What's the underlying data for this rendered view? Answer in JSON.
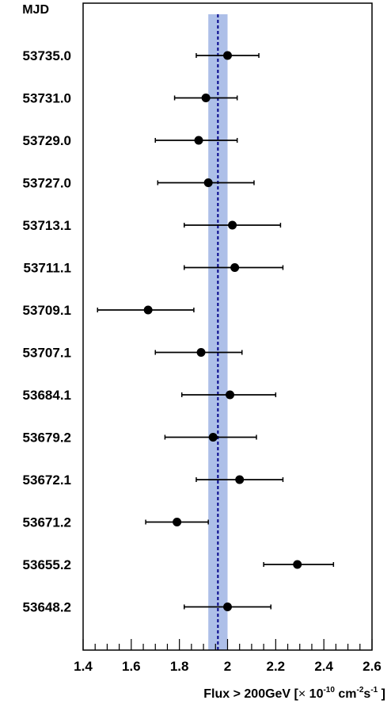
{
  "chart_data": {
    "type": "scatter",
    "orientation": "horizontal",
    "corner_label": "MJD",
    "xlabel_parts": [
      "Flux > 200GeV [",
      "×",
      " 10",
      "-10",
      " cm",
      "-2",
      "s",
      "-1",
      " ]"
    ],
    "x_ticks": [
      "1.4",
      "1.6",
      "1.8",
      "2",
      "2.2",
      "2.4",
      "2.6"
    ],
    "xlim": [
      1.4,
      2.6
    ],
    "categories": [
      "53735.0",
      "53731.0",
      "53729.0",
      "53727.0",
      "53713.1",
      "53711.1",
      "53709.1",
      "53707.1",
      "53684.1",
      "53679.2",
      "53672.1",
      "53671.2",
      "53655.2",
      "53648.2"
    ],
    "values": [
      2.0,
      1.91,
      1.88,
      1.92,
      2.02,
      2.03,
      1.67,
      1.89,
      2.01,
      1.94,
      2.05,
      1.79,
      2.29,
      2.0
    ],
    "err_low": [
      1.87,
      1.78,
      1.7,
      1.71,
      1.82,
      1.82,
      1.46,
      1.7,
      1.81,
      1.74,
      1.87,
      1.66,
      2.15,
      1.82
    ],
    "err_high": [
      2.13,
      2.04,
      2.04,
      2.11,
      2.22,
      2.23,
      1.86,
      2.06,
      2.2,
      2.12,
      2.23,
      1.92,
      2.44,
      2.18
    ],
    "mean": 1.96,
    "band": [
      1.92,
      2.0
    ],
    "colors": {
      "band": "#adbfe8",
      "points": "#000000",
      "mean_line": "#00008b"
    },
    "grid": false,
    "legend": "none"
  }
}
